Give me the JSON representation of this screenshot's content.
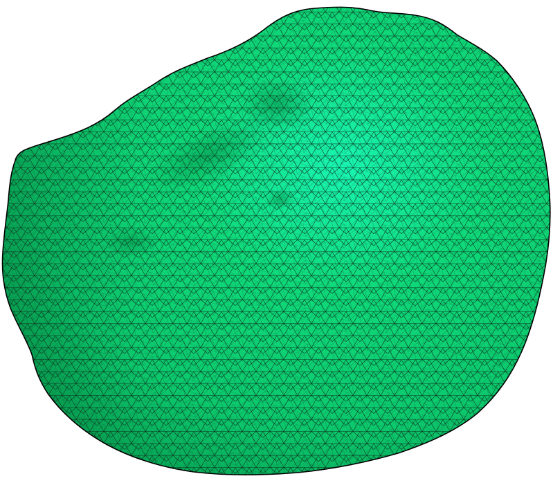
{
  "scene": {
    "subject": "triangulated-mesh-blob",
    "background_color": "#ffffff",
    "surface_colors": {
      "highlight": "#19f5b2",
      "base": "#0fd97a",
      "mid": "#0cc86d",
      "shadow": "#07a354",
      "deep_shadow": "#058c46"
    },
    "wire_color": "#0b2a17",
    "outline_color": "#000000"
  }
}
